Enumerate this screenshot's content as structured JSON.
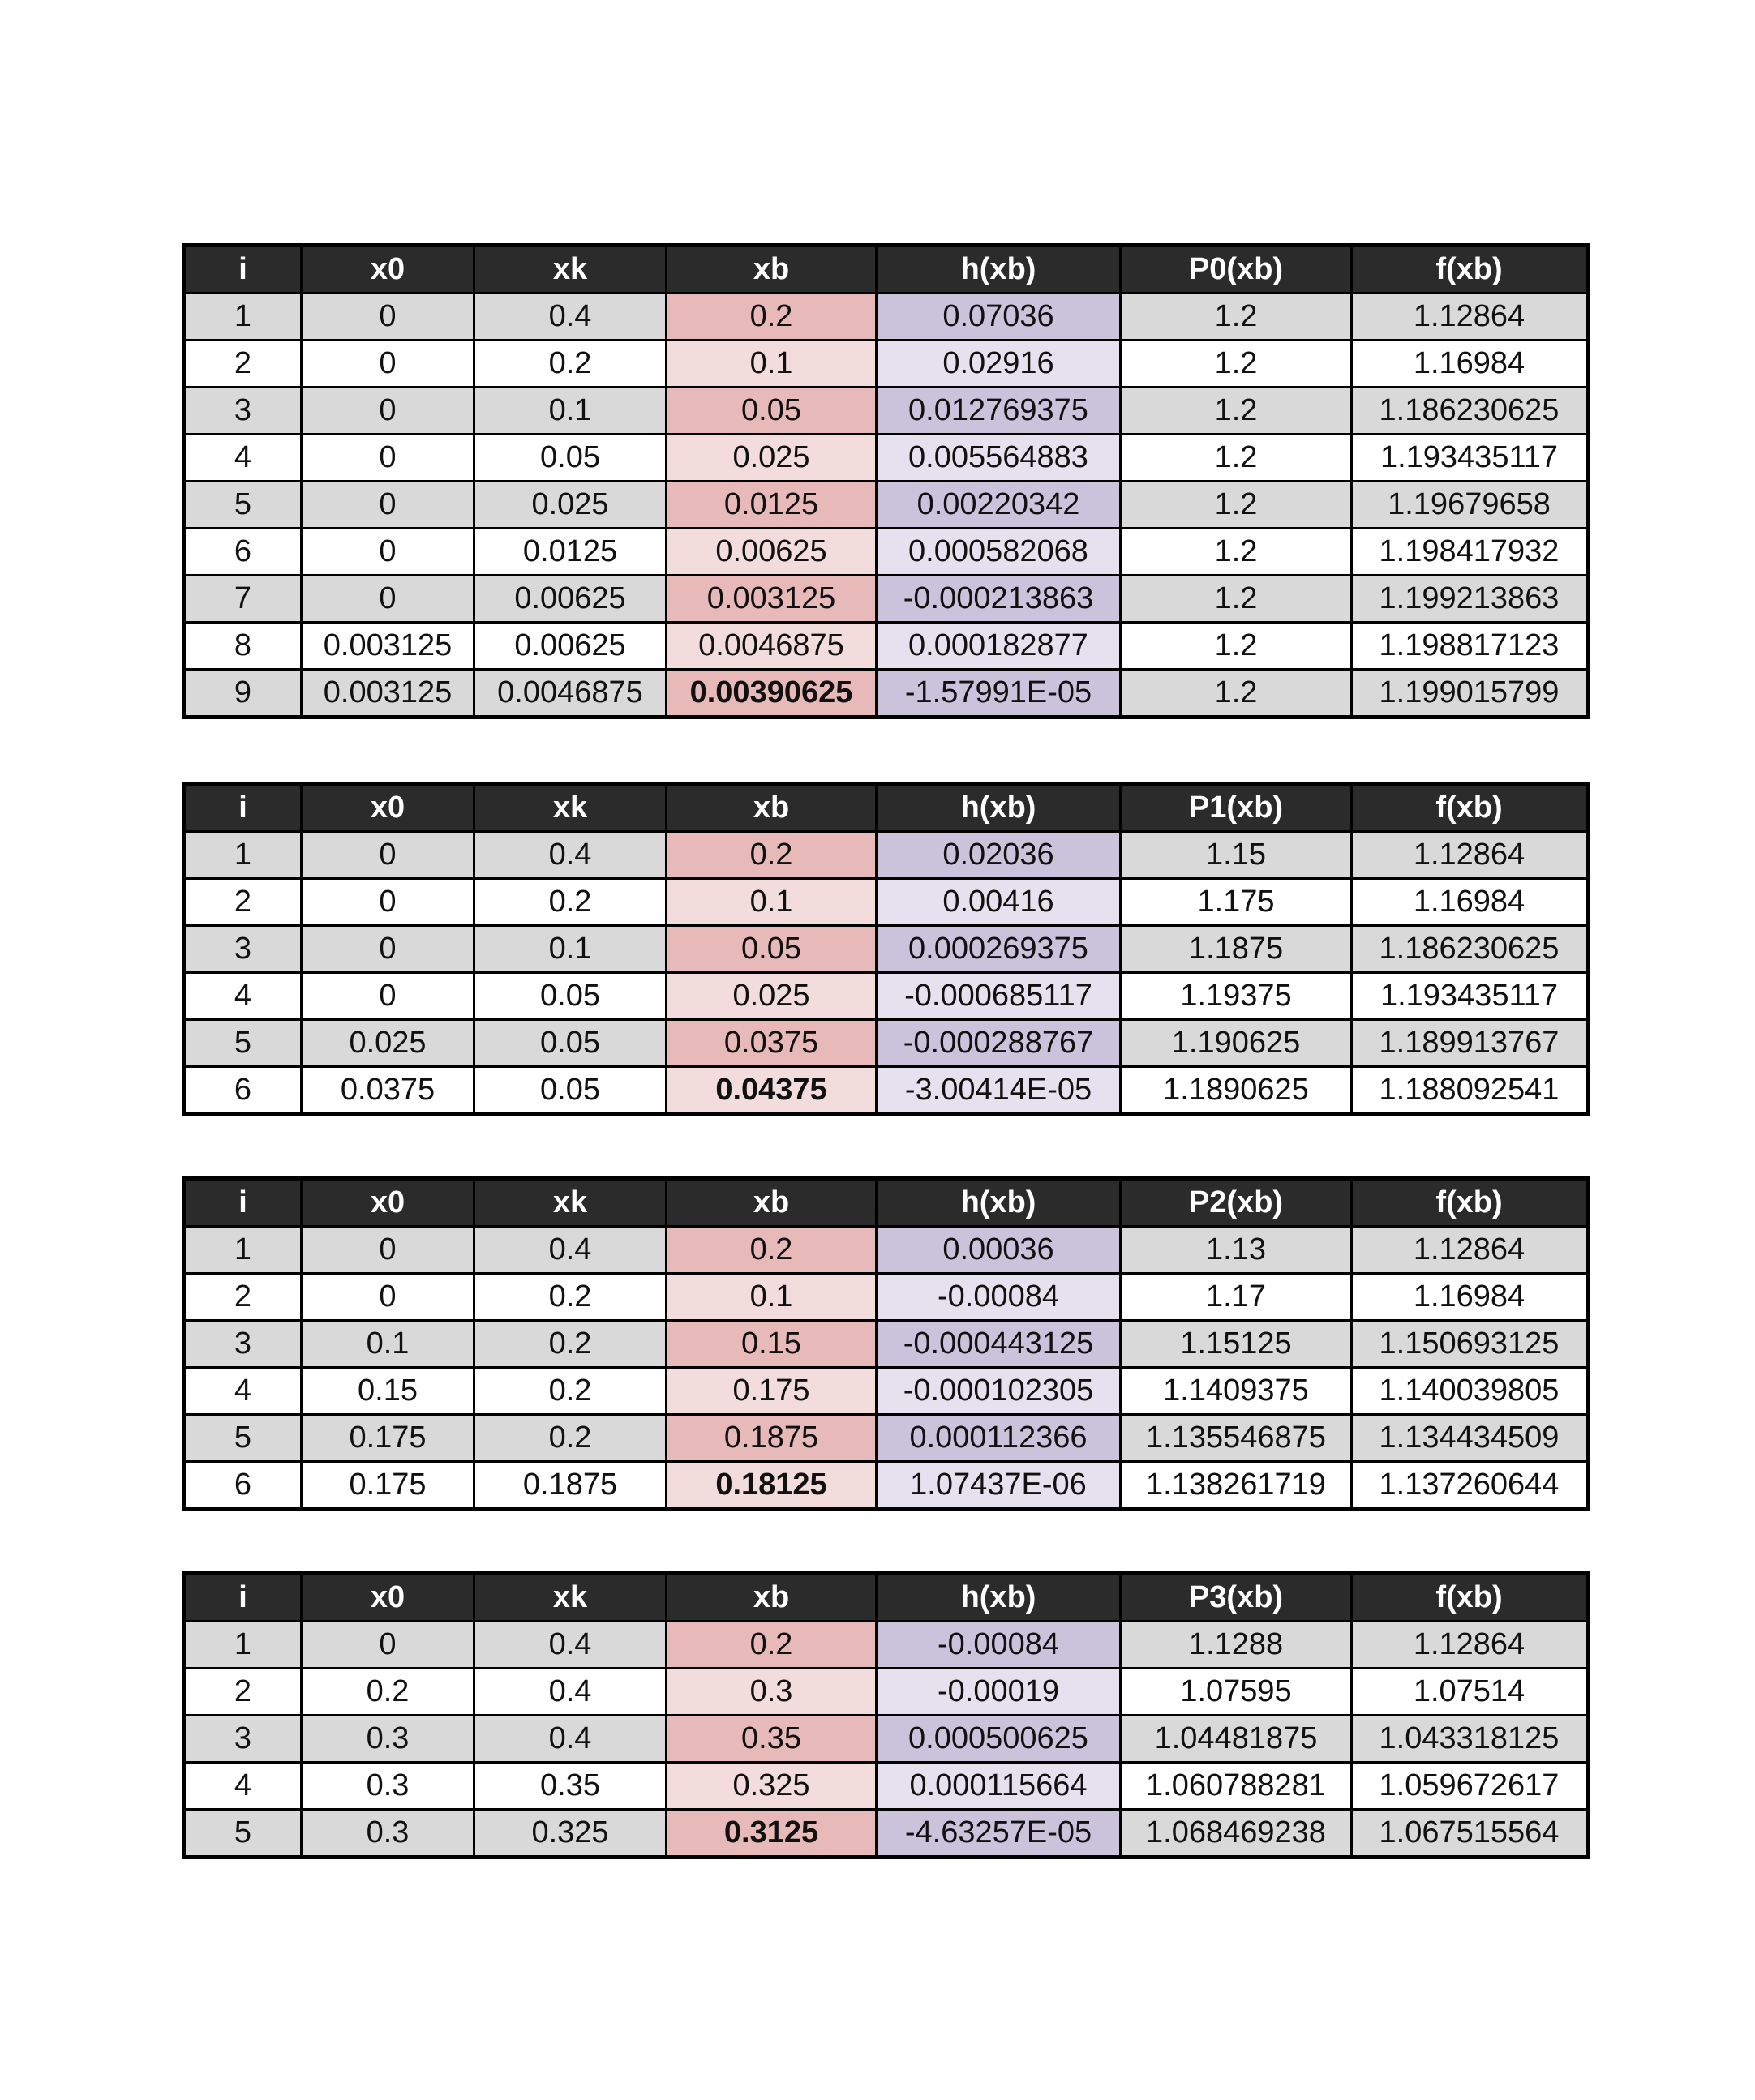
{
  "tables": [
    {
      "headers": [
        "i",
        "x0",
        "xk",
        "xb",
        "h(xb)",
        "P0(xb)",
        "f(xb)"
      ],
      "rows": [
        [
          "1",
          "0",
          "0.4",
          "0.2",
          "0.07036",
          "1.2",
          "1.12864"
        ],
        [
          "2",
          "0",
          "0.2",
          "0.1",
          "0.02916",
          "1.2",
          "1.16984"
        ],
        [
          "3",
          "0",
          "0.1",
          "0.05",
          "0.012769375",
          "1.2",
          "1.186230625"
        ],
        [
          "4",
          "0",
          "0.05",
          "0.025",
          "0.005564883",
          "1.2",
          "1.193435117"
        ],
        [
          "5",
          "0",
          "0.025",
          "0.0125",
          "0.00220342",
          "1.2",
          "1.19679658"
        ],
        [
          "6",
          "0",
          "0.0125",
          "0.00625",
          "0.000582068",
          "1.2",
          "1.198417932"
        ],
        [
          "7",
          "0",
          "0.00625",
          "0.003125",
          "-0.000213863",
          "1.2",
          "1.199213863"
        ],
        [
          "8",
          "0.003125",
          "0.00625",
          "0.0046875",
          "0.000182877",
          "1.2",
          "1.198817123"
        ],
        [
          "9",
          "0.003125",
          "0.0046875",
          "0.00390625",
          "-1.57991E-05",
          "1.2",
          "1.199015799"
        ]
      ]
    },
    {
      "headers": [
        "i",
        "x0",
        "xk",
        "xb",
        "h(xb)",
        "P1(xb)",
        "f(xb)"
      ],
      "rows": [
        [
          "1",
          "0",
          "0.4",
          "0.2",
          "0.02036",
          "1.15",
          "1.12864"
        ],
        [
          "2",
          "0",
          "0.2",
          "0.1",
          "0.00416",
          "1.175",
          "1.16984"
        ],
        [
          "3",
          "0",
          "0.1",
          "0.05",
          "0.000269375",
          "1.1875",
          "1.186230625"
        ],
        [
          "4",
          "0",
          "0.05",
          "0.025",
          "-0.000685117",
          "1.19375",
          "1.193435117"
        ],
        [
          "5",
          "0.025",
          "0.05",
          "0.0375",
          "-0.000288767",
          "1.190625",
          "1.189913767"
        ],
        [
          "6",
          "0.0375",
          "0.05",
          "0.04375",
          "-3.00414E-05",
          "1.1890625",
          "1.188092541"
        ]
      ]
    },
    {
      "headers": [
        "i",
        "x0",
        "xk",
        "xb",
        "h(xb)",
        "P2(xb)",
        "f(xb)"
      ],
      "rows": [
        [
          "1",
          "0",
          "0.4",
          "0.2",
          "0.00036",
          "1.13",
          "1.12864"
        ],
        [
          "2",
          "0",
          "0.2",
          "0.1",
          "-0.00084",
          "1.17",
          "1.16984"
        ],
        [
          "3",
          "0.1",
          "0.2",
          "0.15",
          "-0.000443125",
          "1.15125",
          "1.150693125"
        ],
        [
          "4",
          "0.15",
          "0.2",
          "0.175",
          "-0.000102305",
          "1.1409375",
          "1.140039805"
        ],
        [
          "5",
          "0.175",
          "0.2",
          "0.1875",
          "0.000112366",
          "1.135546875",
          "1.134434509"
        ],
        [
          "6",
          "0.175",
          "0.1875",
          "0.18125",
          "1.07437E-06",
          "1.138261719",
          "1.137260644"
        ]
      ]
    },
    {
      "headers": [
        "i",
        "x0",
        "xk",
        "xb",
        "h(xb)",
        "P3(xb)",
        "f(xb)"
      ],
      "rows": [
        [
          "1",
          "0",
          "0.4",
          "0.2",
          "-0.00084",
          "1.1288",
          "1.12864"
        ],
        [
          "2",
          "0.2",
          "0.4",
          "0.3",
          "-0.00019",
          "1.07595",
          "1.07514"
        ],
        [
          "3",
          "0.3",
          "0.4",
          "0.35",
          "0.000500625",
          "1.04481875",
          "1.043318125"
        ],
        [
          "4",
          "0.3",
          "0.35",
          "0.325",
          "0.000115664",
          "1.060788281",
          "1.059672617"
        ],
        [
          "5",
          "0.3",
          "0.325",
          "0.3125",
          "-4.63257E-05",
          "1.068469238",
          "1.067515564"
        ]
      ]
    }
  ],
  "colors": {
    "header_bg": "#2b2b2b",
    "row_odd": "#d9d9d9",
    "row_even": "#ffffff",
    "xb_odd": "#e7b9b9",
    "xb_even": "#f2dcdc",
    "h_odd": "#cbc3dc",
    "h_even": "#e6e1ee"
  }
}
